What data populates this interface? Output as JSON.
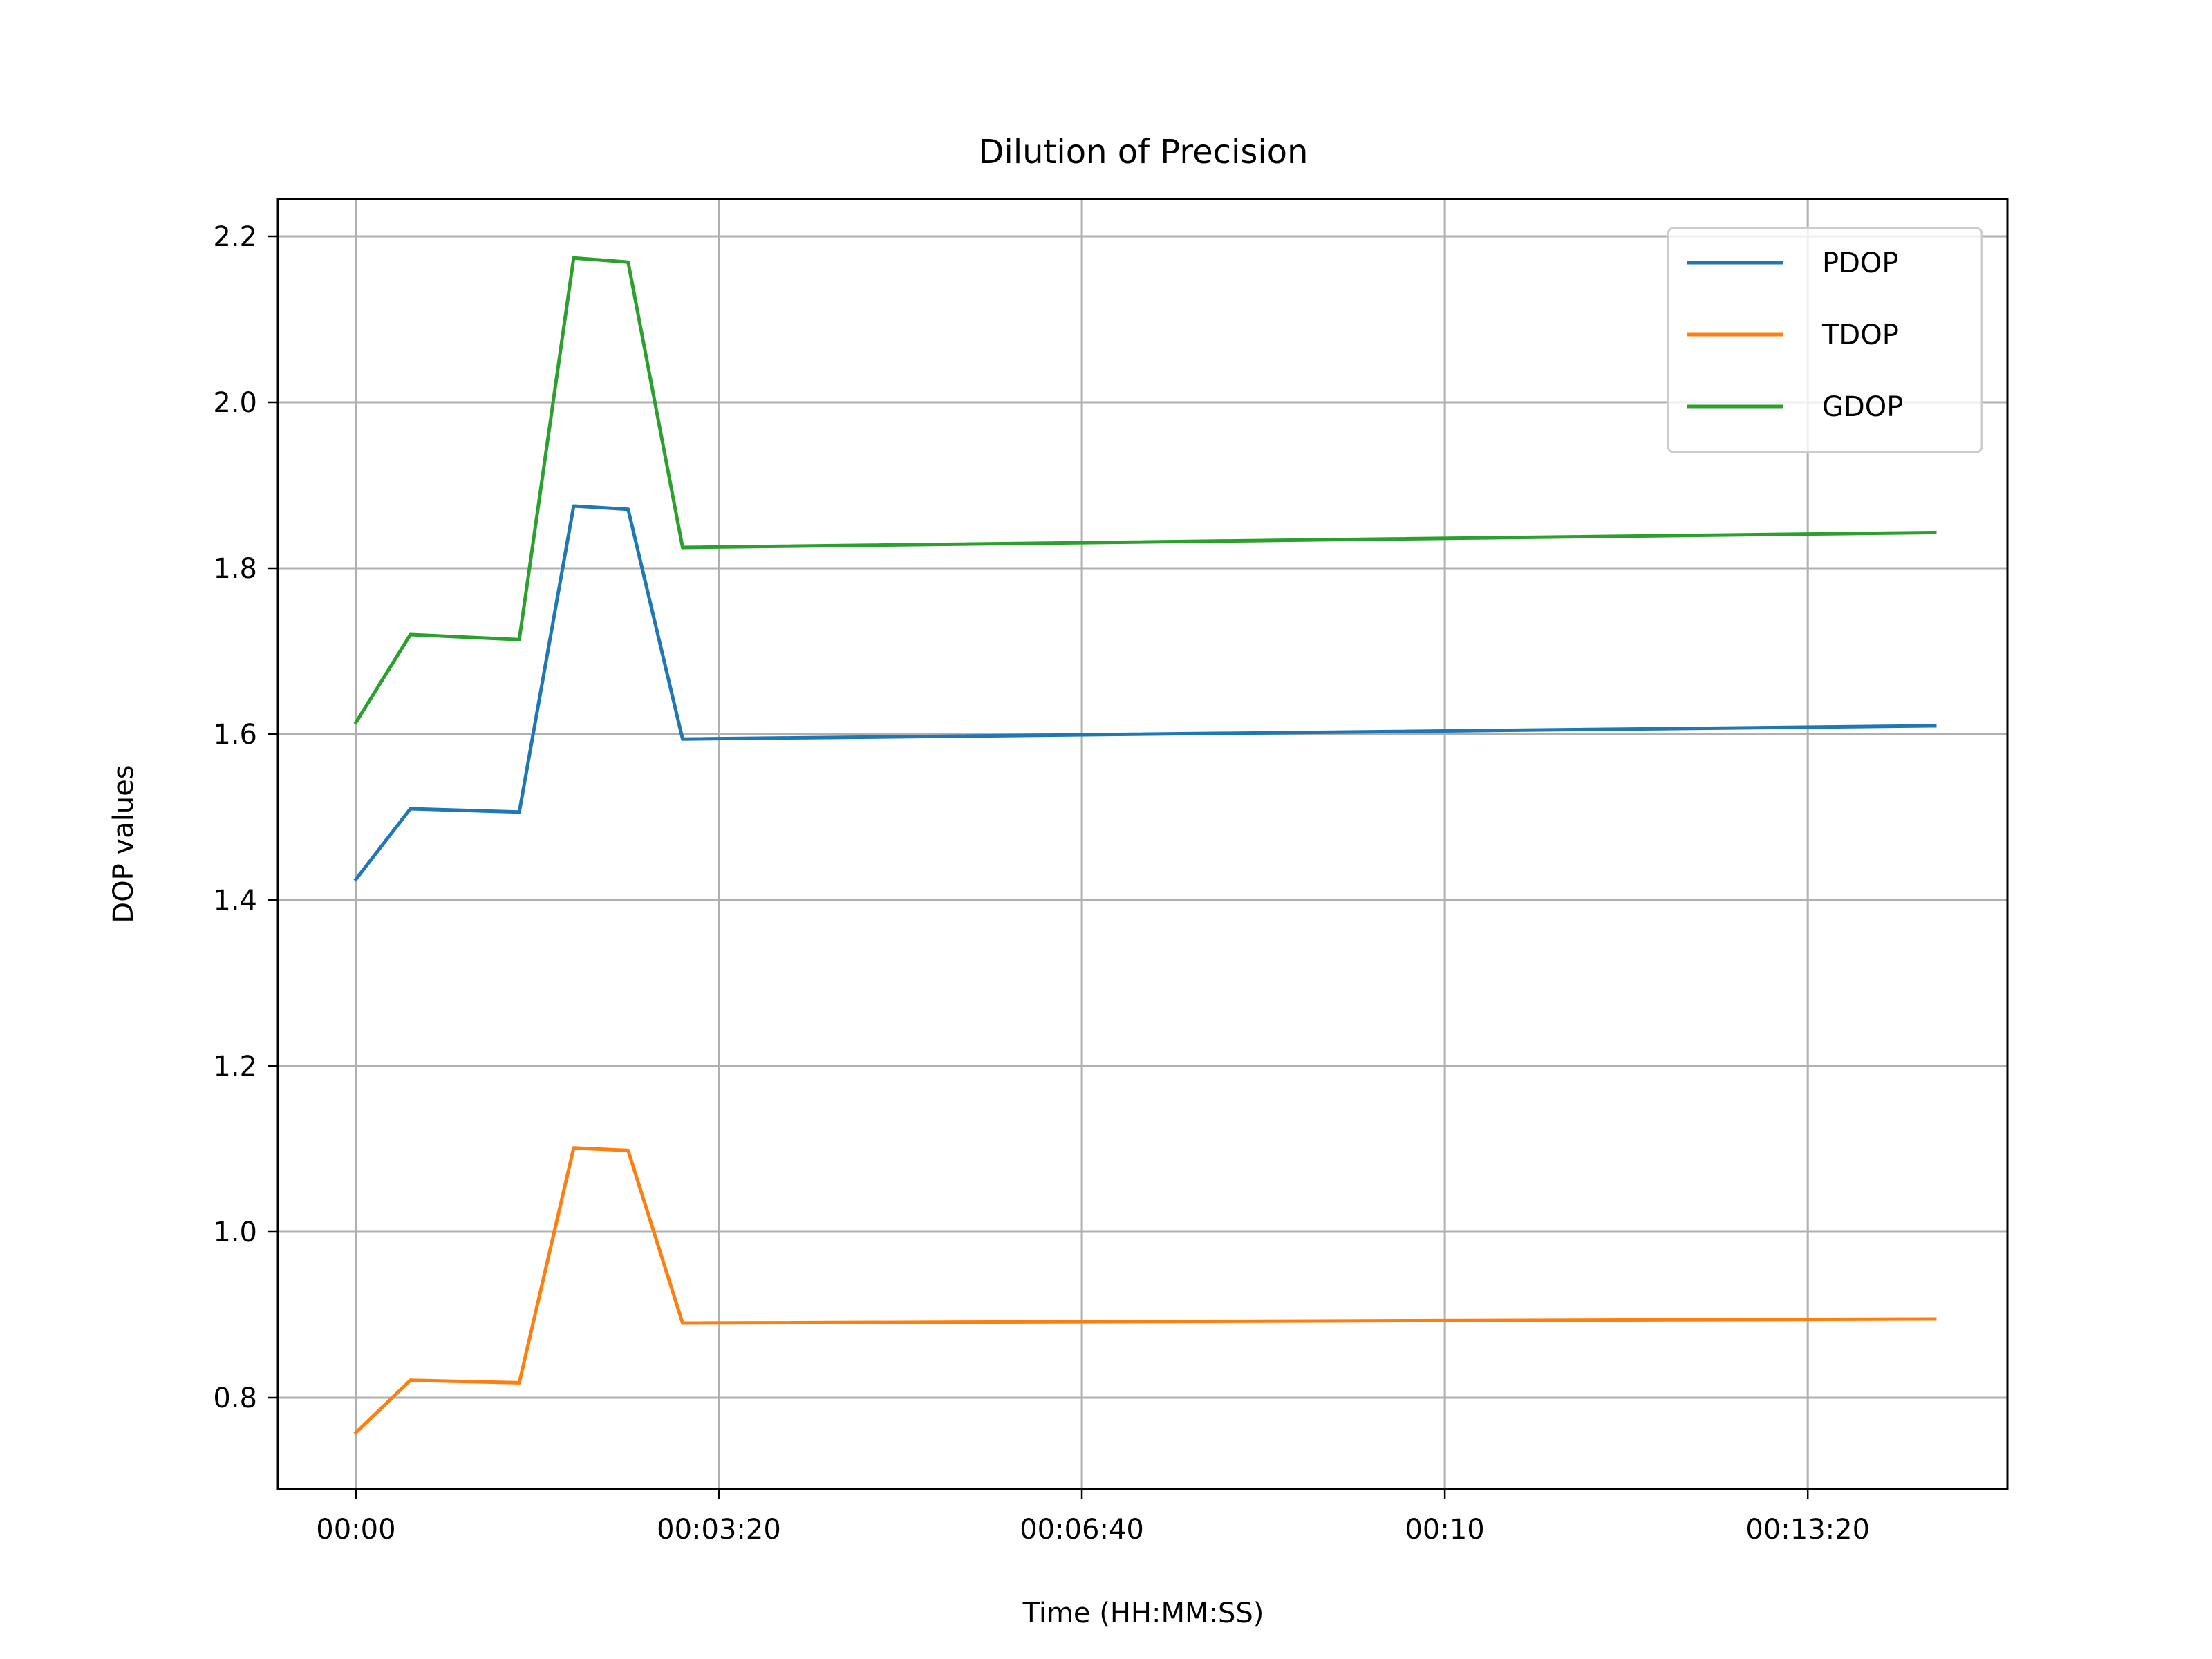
{
  "chart_data": {
    "type": "line",
    "title": "Dilution of Precision",
    "xlabel": "Time (HH:MM:SS)",
    "ylabel": "DOP values",
    "x_unit": "seconds",
    "x": [
      0,
      30,
      90,
      120,
      150,
      180,
      870
    ],
    "xlim": [
      -43,
      910
    ],
    "ylim": [
      0.69,
      2.245
    ],
    "x_ticks": [
      {
        "value": 0,
        "label": "00:00"
      },
      {
        "value": 200,
        "label": "00:03:20"
      },
      {
        "value": 400,
        "label": "00:06:40"
      },
      {
        "value": 600,
        "label": "00:10"
      },
      {
        "value": 800,
        "label": "00:13:20"
      }
    ],
    "y_ticks": [
      {
        "value": 0.8,
        "label": "0.8"
      },
      {
        "value": 1.0,
        "label": "1.0"
      },
      {
        "value": 1.2,
        "label": "1.2"
      },
      {
        "value": 1.4,
        "label": "1.4"
      },
      {
        "value": 1.6,
        "label": "1.6"
      },
      {
        "value": 1.8,
        "label": "1.8"
      },
      {
        "value": 2.0,
        "label": "2.0"
      },
      {
        "value": 2.2,
        "label": "2.2"
      }
    ],
    "grid": true,
    "legend_position": "top-right",
    "series": [
      {
        "name": "PDOP",
        "color": "#1f77b4",
        "values": [
          1.425,
          1.51,
          1.506,
          1.875,
          1.871,
          1.594,
          1.61
        ]
      },
      {
        "name": "TDOP",
        "color": "#ff7f0e",
        "values": [
          0.758,
          0.821,
          0.818,
          1.101,
          1.098,
          0.89,
          0.895
        ]
      },
      {
        "name": "GDOP",
        "color": "#2ca02c",
        "values": [
          1.614,
          1.72,
          1.714,
          2.174,
          2.169,
          1.825,
          1.843
        ]
      }
    ]
  }
}
